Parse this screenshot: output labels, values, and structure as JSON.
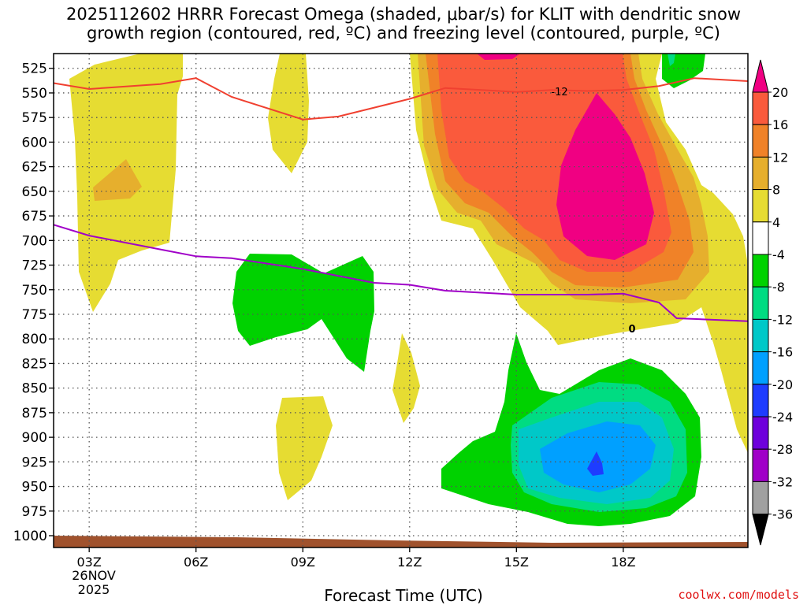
{
  "title_line1": "2025112602 HRRR Forecast Omega (shaded, μbar/s) for KLIT with dendritic snow",
  "title_line2": "growth region (contoured, red, ºC) and freezing level (contoured, purple, ºC)",
  "xlabel": "Forecast Time (UTC)",
  "credit": "coolwx.com/models",
  "date_line1": "26NOV",
  "date_line2": "2025",
  "colors": {
    "c_m36": "#ffffff",
    "c_m32": "#a0a0a0",
    "c_m28": "#a000c8",
    "c_m24": "#6e00dc",
    "c_m20": "#1e3cff",
    "c_m16": "#00a0ff",
    "c_m12": "#00c8c8",
    "c_m8": "#00dc82",
    "c_m4": "#00d200",
    "c_4": "#e6dc32",
    "c_8": "#e6af2d",
    "c_12": "#f08228",
    "c_16": "#fa5a3c",
    "c_20": "#f00082",
    "ground": "#a0522d",
    "dgz_line": "#f04030",
    "frz_line": "#a000c8"
  },
  "chart_data": {
    "type": "time-height contour",
    "title": "2025112602 HRRR Forecast Omega (shaded, μbar/s) for KLIT",
    "x_range": [
      2,
      21.5
    ],
    "x_ticks": [
      3,
      6,
      9,
      12,
      15,
      18
    ],
    "x_tick_labels": [
      "03Z",
      "06Z",
      "09Z",
      "12Z",
      "15Z",
      "18Z"
    ],
    "y_levels": [
      525,
      550,
      575,
      600,
      625,
      650,
      675,
      700,
      725,
      750,
      775,
      800,
      825,
      850,
      875,
      900,
      925,
      950,
      975,
      1000
    ],
    "y_range_hpa": [
      510,
      1012
    ],
    "colorbar_labels": [
      20,
      16,
      12,
      8,
      4,
      -4,
      -8,
      -12,
      -16,
      -20,
      -24,
      -28,
      -32,
      -36
    ],
    "dgz_contour_label": "-12",
    "freezing_contour_label": "0",
    "dgz_minus12_line": {
      "x": [
        2,
        3,
        5,
        6,
        7,
        9,
        10,
        12,
        13,
        15,
        16,
        17,
        18,
        19,
        20,
        21.5
      ],
      "p": [
        540,
        546,
        541,
        535,
        554,
        577,
        574,
        556,
        545,
        549,
        547,
        548,
        547,
        543,
        535,
        538
      ]
    },
    "freezing_0_line": {
      "x": [
        2,
        3,
        5,
        6,
        7,
        9,
        11,
        12,
        13,
        15,
        16,
        17,
        18,
        19,
        19.5,
        21.5
      ],
      "p": [
        684,
        695,
        709,
        716,
        718,
        729,
        743,
        745,
        751,
        755,
        755,
        755,
        754,
        763,
        779,
        782
      ]
    }
  }
}
